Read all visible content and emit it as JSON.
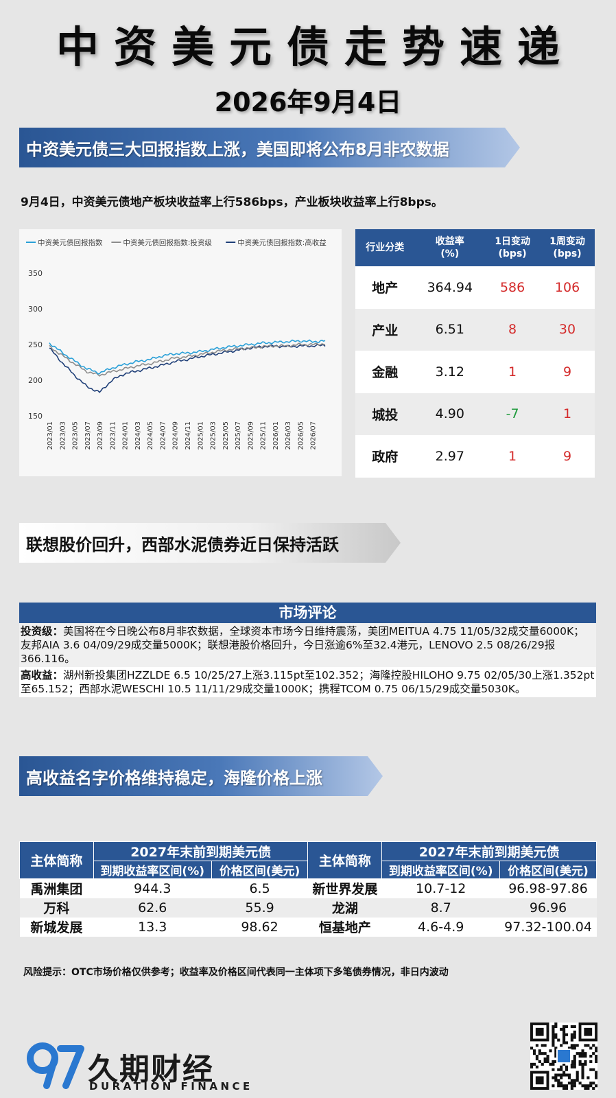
{
  "header": {
    "title": "中资美元债走势速递",
    "date": "2026年9月4日"
  },
  "section1": {
    "banner": "中资美元债三大回报指数上涨，美国即将公布8月非农数据",
    "summary": "9月4日，中资美元债地产板块收益率上行586bps，产业板块收益率上行8bps。"
  },
  "chart_data": {
    "type": "line",
    "title": "",
    "xlabel": "",
    "ylabel": "",
    "ylim": [
      150,
      350
    ],
    "yticks": [
      150,
      200,
      250,
      300,
      350
    ],
    "x_ticks": [
      "2023/01",
      "2023/03",
      "2023/05",
      "2023/07",
      "2023/09",
      "2023/11",
      "2024/01",
      "2024/03",
      "2024/05",
      "2024/07",
      "2024/09",
      "2024/11",
      "2025/01",
      "2025/03",
      "2025/05",
      "2025/07",
      "2025/09",
      "2025/11",
      "2026/01",
      "2026/03",
      "2026/05",
      "2026/07"
    ],
    "x": [
      "2023/01",
      "2023/03",
      "2023/05",
      "2023/07",
      "2023/09",
      "2023/11",
      "2024/01",
      "2024/03",
      "2024/05",
      "2024/07",
      "2024/09",
      "2024/11",
      "2025/01",
      "2025/03",
      "2025/05",
      "2025/07",
      "2025/09",
      "2025/11",
      "2026/01",
      "2026/03",
      "2026/05",
      "2026/07",
      "2026/09"
    ],
    "legend_position": "top-left",
    "grid": false,
    "series": [
      {
        "name": "中资美元债回报指数",
        "color": "#2aa0d8",
        "values": [
          252,
          239,
          227,
          216,
          210,
          217,
          222,
          226,
          229,
          234,
          237,
          238,
          240,
          243,
          246,
          248,
          250,
          252,
          253,
          254,
          255,
          254,
          255
        ]
      },
      {
        "name": "中资美元债回报指数:投资级",
        "color": "#8c8c8c",
        "values": [
          247,
          235,
          223,
          212,
          207,
          212,
          216,
          220,
          223,
          227,
          231,
          233,
          236,
          239,
          242,
          244,
          245,
          247,
          248,
          248,
          250,
          250,
          251
        ]
      },
      {
        "name": "中资美元债回报指数:高收益",
        "color": "#1f3f78",
        "values": [
          245,
          225,
          207,
          191,
          183,
          200,
          209,
          213,
          217,
          221,
          226,
          229,
          233,
          236,
          239,
          242,
          245,
          247,
          248,
          247,
          248,
          248,
          249
        ]
      }
    ]
  },
  "industry_table": {
    "headers": [
      "行业分类",
      "收益率\n(%)",
      "1日变动\n(bps)",
      "1周变动\n(bps)"
    ],
    "rows": [
      {
        "cat": "地产",
        "yield": "364.94",
        "d1": "586",
        "w1": "106",
        "d1_sign": "pos",
        "w1_sign": "pos"
      },
      {
        "cat": "产业",
        "yield": "6.51",
        "d1": "8",
        "w1": "30",
        "d1_sign": "pos",
        "w1_sign": "pos"
      },
      {
        "cat": "金融",
        "yield": "3.12",
        "d1": "1",
        "w1": "9",
        "d1_sign": "pos",
        "w1_sign": "pos"
      },
      {
        "cat": "城投",
        "yield": "4.90",
        "d1": "-7",
        "w1": "1",
        "d1_sign": "neg",
        "w1_sign": "pos"
      },
      {
        "cat": "政府",
        "yield": "2.97",
        "d1": "1",
        "w1": "9",
        "d1_sign": "pos",
        "w1_sign": "pos"
      }
    ],
    "colors": {
      "positive": "#d42a2a",
      "negative": "#1e9a3c",
      "header": "#2a5694"
    }
  },
  "section2": {
    "banner": "联想股价回升，西部水泥债券近日保持活跃"
  },
  "commentary": {
    "title": "市场评论",
    "ig_label": "投资级：",
    "ig_text": "美国将在今日晚公布8月非农数据，全球资本市场今日维持震荡，美团MEITUA 4.75 11/05/32成交量6000K；友邦AIA 3.6 04/09/29成交量5000K；联想港股价格回升，今日涨逾6%至32.4港元，LENOVO 2.5 08/26/29报366.116。",
    "hy_label": "高收益：",
    "hy_text": "湖州新投集团HZZLDE 6.5 10/25/27上涨3.115pt至102.352；海隆控股HILOHO 9.75 02/05/30上涨1.352pt至65.152；西部水泥WESCHI 10.5 11/11/29成交量1000K；携程TCOM 0.75 06/15/29成交量5030K。"
  },
  "section3": {
    "banner": "高收益名字价格维持稳定，海隆价格上涨"
  },
  "hy_table": {
    "entity_header": "主体简称",
    "group_header": "2027年末前到期美元债",
    "sub_headers": [
      "到期收益率区间(%)",
      "价格区间(美元)"
    ],
    "left": [
      {
        "name": "禹洲集团",
        "ytm": "944.3",
        "price": "6.5"
      },
      {
        "name": "万科",
        "ytm": "62.6",
        "price": "55.9"
      },
      {
        "name": "新城发展",
        "ytm": "13.3",
        "price": "98.62"
      }
    ],
    "right": [
      {
        "name": "新世界发展",
        "ytm": "10.7-12",
        "price": "96.98-97.86"
      },
      {
        "name": "龙湖",
        "ytm": "8.7",
        "price": "96.96"
      },
      {
        "name": "恒基地产",
        "ytm": "4.6-4.9",
        "price": "97.32-100.04"
      }
    ]
  },
  "footer": {
    "risk": "风险提示：OTC市场价格仅供参考；收益率及价格区间代表同一主体项下多笔债券情况，非日内波动",
    "brand_cn": "久期财经",
    "brand_en": "DURATION FINANCE",
    "logo_text": "97"
  }
}
